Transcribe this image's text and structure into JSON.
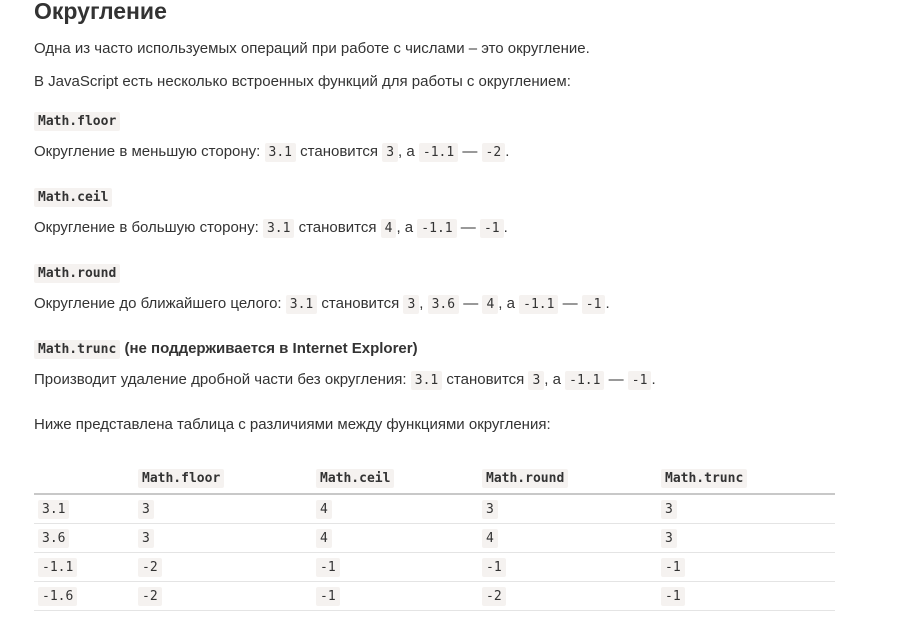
{
  "title": "Округление",
  "intro": "Одна из часто используемых операций при работе с числами – это округление.",
  "intro2": "В JavaScript есть несколько встроенных функций для работы с округлением:",
  "floor": {
    "name": "Math.floor",
    "desc": "Округление в меньшую сторону:",
    "a": "3.1",
    "t1": "становится",
    "b": "3",
    "t2": ", а",
    "c": "-1.1",
    "t3": "—",
    "d": "-2",
    "end": "."
  },
  "ceil": {
    "name": "Math.ceil",
    "desc": "Округление в большую сторону:",
    "a": "3.1",
    "t1": "становится",
    "b": "4",
    "t2": ", а",
    "c": "-1.1",
    "t3": "—",
    "d": "-1",
    "end": "."
  },
  "round": {
    "name": "Math.round",
    "desc": "Округление до ближайшего целого:",
    "a": "3.1",
    "t1": "становится",
    "b": "3",
    "t2": ",",
    "e": "3.6",
    "t4": "—",
    "f": "4",
    "t5": ", а",
    "c": "-1.1",
    "t3": "—",
    "d": "-1",
    "end": "."
  },
  "trunc": {
    "name": "Math.trunc",
    "note": "(не поддерживается в Internet Explorer)",
    "desc": "Производит удаление дробной части без округления:",
    "a": "3.1",
    "t1": "становится",
    "b": "3",
    "t2": ", а",
    "c": "-1.1",
    "t3": "—",
    "d": "-1",
    "end": "."
  },
  "table_intro": "Ниже представлена таблица с различиями между функциями округления:",
  "table": {
    "headers": [
      "",
      "Math.floor",
      "Math.ceil",
      "Math.round",
      "Math.trunc"
    ],
    "rows": [
      [
        "3.1",
        "3",
        "4",
        "3",
        "3"
      ],
      [
        "3.6",
        "3",
        "4",
        "4",
        "3"
      ],
      [
        "-1.1",
        "-2",
        "-1",
        "-1",
        "-1"
      ],
      [
        "-1.6",
        "-2",
        "-1",
        "-2",
        "-1"
      ]
    ]
  }
}
